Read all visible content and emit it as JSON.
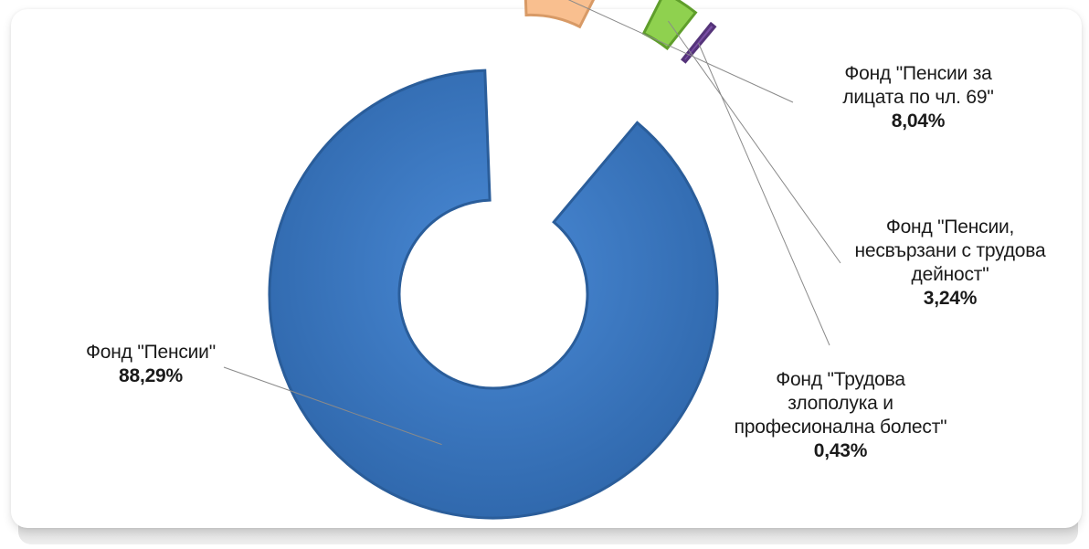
{
  "chart_data": {
    "type": "pie",
    "variant": "exploded-doughnut",
    "slices": [
      {
        "label": "Фонд \"Пенсии\"",
        "value": 88.29,
        "value_label": "88,29%",
        "color": "#3a7bc4"
      },
      {
        "label": "Фонд \"Пенсии за лицата по чл. 69\"",
        "value": 8.04,
        "value_label": "8,04%",
        "color": "#f9bf8f"
      },
      {
        "label": "Фонд \"Пенсии, несвързани с трудова дейност\"",
        "value": 3.24,
        "value_label": "3,24%",
        "color": "#8fd14f"
      },
      {
        "label": "Фонд \"Трудова злополука и професионална болест\"",
        "value": 0.43,
        "value_label": "0,43%",
        "color": "#7b4fa6"
      }
    ],
    "legend": "none"
  },
  "labels": {
    "s0_name": "Фонд \"Пенсии\"",
    "s1_name": "Фонд \"Пенсии за\nлицата по чл. 69\"",
    "s2_name": "Фонд \"Пенсии,\nнесвързани с трудова\nдейност\"",
    "s3_name": "Фонд \"Трудова\nзлополука и\nпрофесионална болест\""
  }
}
